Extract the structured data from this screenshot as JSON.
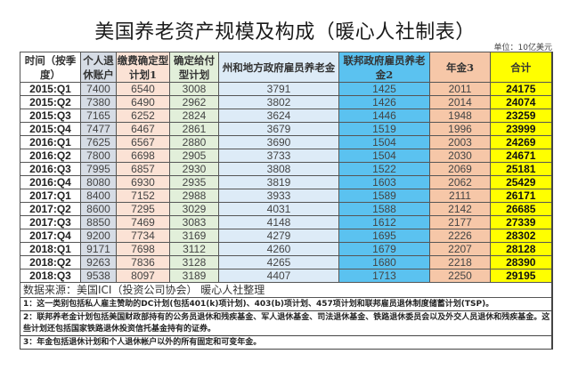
{
  "title": "美国养老资产规模及构成（暖心人社制表）",
  "unit": "单位：10亿美元",
  "table": {
    "headers": [
      "时间（按季度）",
      "个人退休账户",
      "缴费确定型计划1",
      "确定给付型计划",
      "州和地方政府雇员养老金",
      "联邦政府雇员养老金2",
      "年金3",
      "合计"
    ],
    "rows": [
      [
        "2015:Q1",
        "7400",
        "6540",
        "3008",
        "3791",
        "1425",
        "2011",
        "24175"
      ],
      [
        "2015:Q2",
        "7380",
        "6490",
        "2962",
        "3802",
        "1426",
        "2014",
        "24074"
      ],
      [
        "2015:Q3",
        "7165",
        "6252",
        "2824",
        "3624",
        "1446",
        "1948",
        "23259"
      ],
      [
        "2015:Q4",
        "7477",
        "6467",
        "2861",
        "3679",
        "1519",
        "1996",
        "23999"
      ],
      [
        "2016:Q1",
        "7625",
        "6567",
        "2880",
        "3690",
        "1504",
        "2003",
        "24269"
      ],
      [
        "2016:Q2",
        "7800",
        "6698",
        "2905",
        "3733",
        "1504",
        "2030",
        "24671"
      ],
      [
        "2016:Q3",
        "7995",
        "6857",
        "2930",
        "3808",
        "1522",
        "2069",
        "25181"
      ],
      [
        "2016:Q4",
        "8080",
        "6930",
        "2935",
        "3819",
        "1603",
        "2062",
        "25429"
      ],
      [
        "2017:Q1",
        "8400",
        "7152",
        "2988",
        "3933",
        "1589",
        "2111",
        "26171"
      ],
      [
        "2017:Q2",
        "8600",
        "7295",
        "3029",
        "4031",
        "1588",
        "2142",
        "26685"
      ],
      [
        "2017:Q3",
        "8850",
        "7469",
        "3083",
        "4148",
        "1612",
        "2177",
        "27339"
      ],
      [
        "2017:Q4",
        "9200",
        "7734",
        "3169",
        "4279",
        "1695",
        "2226",
        "28302"
      ],
      [
        "2018:Q1",
        "9171",
        "7698",
        "3112",
        "4260",
        "1679",
        "2207",
        "28128"
      ],
      [
        "2018:Q2",
        "9263",
        "7836",
        "3128",
        "4265",
        "1680",
        "2218",
        "28390"
      ],
      [
        "2018:Q3",
        "9538",
        "8097",
        "3189",
        "4407",
        "1713",
        "2250",
        "29195"
      ]
    ]
  },
  "source": "数据来源：美国ICI（投资公司协会）  暖心人社整理",
  "notes": [
    "1：这一类别包括私人雇主赞助的DC计划(包括401(k)项计划)、403(b)项计划、457项计划和联邦雇员退休制度储蓄计划(TSP)。",
    "2：联邦养老金计划包括美国财政部持有的公务员退休和残疾基金、军人退休基金、司法退休基金、铁路退休委员会以及外交人员退休和残疾基金。这些计划还包括国家铁路退休投资信托基金持有的证券。",
    "3：年金包括退休计划和个人退休帐户以外的所有固定和可变年金。"
  ],
  "colors": {
    "time": "#ffffff",
    "ira": "#d6dce5",
    "dc": "#fbe2d5",
    "db": "#e2efda",
    "state_local": "#ddebf7",
    "federal": "#5bc2f0",
    "annuity": "#f6c7a8",
    "total": "#ffff00"
  }
}
